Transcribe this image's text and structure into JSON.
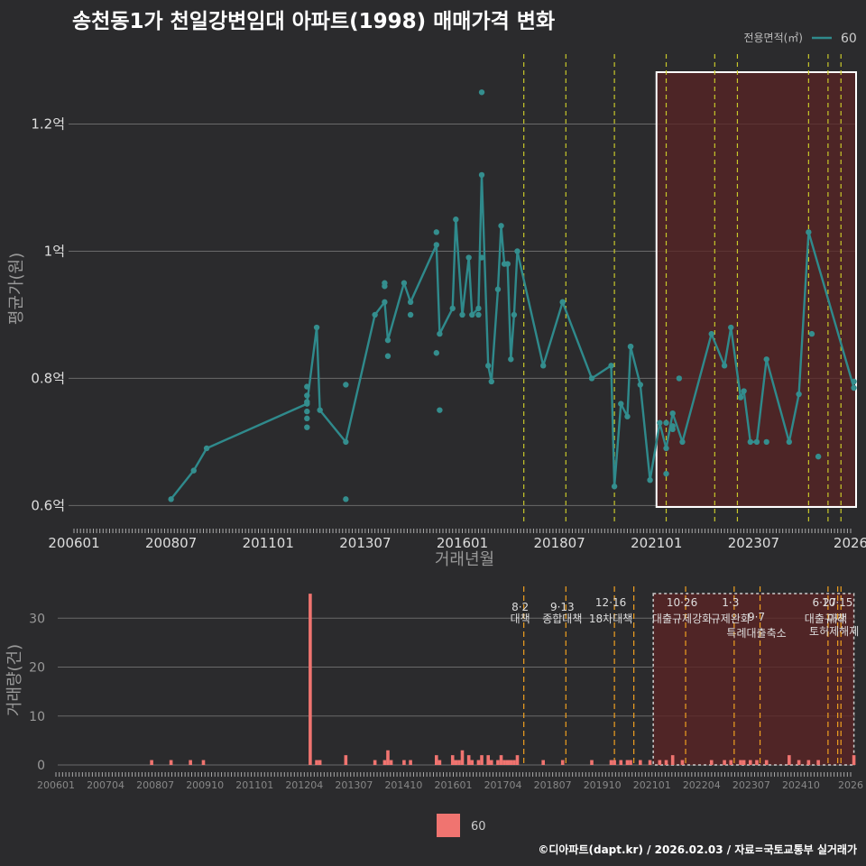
{
  "title": "송천동1가 천일강변임대 아파트(1998) 매매가격 변화",
  "footer": "©디아파트(dapt.kr) / 2026.02.03 / 자료=국토교통부 실거래가",
  "colors": {
    "line": "#2f8a8c",
    "point": "#348e8e",
    "bar": "#f07470",
    "vline_top": "#c8c82a",
    "vline_bottom": "#f0a020",
    "highlight": "#5a2424"
  },
  "chart_data": [
    {
      "type": "line",
      "title": "송천동1가 천일강변임대 아파트(1998) 매매가격 변화",
      "xlabel": "거래년월",
      "ylabel": "평균가(원)",
      "ylim": [
        0.575,
        1.31
      ],
      "y_ticks": [
        {
          "v": 0.6,
          "label": "0.6억"
        },
        {
          "v": 0.8,
          "label": "0.8억"
        },
        {
          "v": 1.0,
          "label": "1억"
        },
        {
          "v": 1.2,
          "label": "1.2억"
        }
      ],
      "x_ticks": [
        "200601",
        "200807",
        "201101",
        "201307",
        "201601",
        "201807",
        "202101",
        "202307",
        "2026"
      ],
      "legend": {
        "title": "전용면적(㎡)",
        "entries": [
          "60"
        ],
        "position": "top-right"
      },
      "highlight_range": [
        "2021-01",
        "2026-01"
      ],
      "event_lines": [
        "2017-08",
        "2018-09",
        "2019-12",
        "2021-04",
        "2022-07",
        "2023-02",
        "2024-12",
        "2025-06",
        "2025-10"
      ],
      "series": [
        {
          "name": "60",
          "x": [
            "2008-07",
            "2009-02",
            "2009-06",
            "2012-01",
            "2012-04",
            "2012-05",
            "2013-01",
            "2013-10",
            "2014-01",
            "2014-02",
            "2014-07",
            "2014-09",
            "2015-05",
            "2015-06",
            "2015-10",
            "2015-11",
            "2016-01",
            "2016-03",
            "2016-04",
            "2016-06",
            "2016-07",
            "2016-09",
            "2016-10",
            "2016-12",
            "2017-01",
            "2017-02",
            "2017-03",
            "2017-04",
            "2017-05",
            "2017-06",
            "2018-02",
            "2018-08",
            "2019-05",
            "2019-11",
            "2019-12",
            "2020-02",
            "2020-04",
            "2020-05",
            "2020-08",
            "2020-11",
            "2021-02",
            "2021-04",
            "2021-06",
            "2021-09",
            "2022-06",
            "2022-10",
            "2022-12",
            "2023-03",
            "2023-04",
            "2023-06",
            "2023-08",
            "2023-11",
            "2024-06",
            "2024-09",
            "2024-12",
            "2026-02"
          ],
          "y": [
            0.61,
            0.655,
            0.69,
            0.76,
            0.88,
            0.75,
            0.7,
            0.9,
            0.92,
            0.86,
            0.95,
            0.92,
            1.01,
            0.87,
            0.91,
            1.05,
            0.9,
            0.99,
            0.9,
            0.91,
            1.12,
            0.82,
            0.795,
            0.94,
            1.04,
            0.98,
            0.98,
            0.83,
            0.9,
            1.0,
            0.82,
            0.92,
            0.8,
            0.82,
            0.63,
            0.76,
            0.74,
            0.85,
            0.79,
            0.64,
            0.73,
            0.69,
            0.745,
            0.7,
            0.87,
            0.82,
            0.88,
            0.77,
            0.78,
            0.7,
            0.7,
            0.83,
            0.7,
            0.775,
            1.03,
            0.785
          ]
        }
      ],
      "points": {
        "x": [
          "2012-01",
          "2012-01",
          "2012-01",
          "2012-01",
          "2012-01",
          "2012-01",
          "2013-01",
          "2013-01",
          "2014-01",
          "2014-01",
          "2014-02",
          "2014-09",
          "2015-05",
          "2015-05",
          "2015-06",
          "2016-06",
          "2016-07",
          "2016-07",
          "2018-08",
          "2020-05",
          "2021-04",
          "2021-04",
          "2021-06",
          "2021-06",
          "2021-08",
          "2023-11",
          "2025-01",
          "2025-03",
          "2026-02"
        ],
        "y": [
          0.787,
          0.773,
          0.763,
          0.748,
          0.737,
          0.723,
          0.79,
          0.61,
          0.95,
          0.945,
          0.835,
          0.9,
          1.03,
          0.84,
          0.75,
          0.9,
          1.25,
          0.99,
          0.92,
          0.85,
          0.73,
          0.65,
          0.725,
          0.72,
          0.8,
          0.7,
          0.87,
          0.677,
          0.795
        ]
      }
    },
    {
      "type": "bar",
      "ylabel": "거래량(건)",
      "ylim": [
        0,
        36.5
      ],
      "y_ticks": [
        0,
        10,
        20,
        30
      ],
      "x_ticks": [
        "200601",
        "200704",
        "200807",
        "200910",
        "201101",
        "201204",
        "201307",
        "201410",
        "201601",
        "201704",
        "201807",
        "201910",
        "202101",
        "202204",
        "202307",
        "202410",
        "2026"
      ],
      "legend": {
        "entries": [
          "60"
        ],
        "position": "bottom"
      },
      "highlight_range": [
        "2020-12",
        "2026-02"
      ],
      "events": [
        {
          "x": "2017-08",
          "date": "8·2",
          "label": "대책"
        },
        {
          "x": "2018-09",
          "date": "9·13",
          "label": "종합대책"
        },
        {
          "x": "2019-12",
          "date": "12·16",
          "label": "18차대책"
        },
        {
          "x": "2020-06",
          "date": "",
          "label": ""
        },
        {
          "x": "2021-10",
          "date": "10·26",
          "label": "대출규제강화"
        },
        {
          "x": "2023-01",
          "date": "1·3",
          "label": "규제완화"
        },
        {
          "x": "2023-09",
          "date": "9·7",
          "label": "특례대출축소"
        },
        {
          "x": "2025-06",
          "date": "6·27",
          "label": "대출규제"
        },
        {
          "x": "2025-09",
          "date": "",
          "label": "토허제해제"
        },
        {
          "x": "2025-10",
          "date": "10·15",
          "label": "대책"
        }
      ],
      "series": [
        {
          "name": "60",
          "x": [
            "2008-01",
            "2008-07",
            "2009-01",
            "2009-05",
            "2012-02",
            "2012-04",
            "2012-05",
            "2013-01",
            "2013-10",
            "2014-01",
            "2014-02",
            "2014-03",
            "2014-07",
            "2014-09",
            "2015-05",
            "2015-06",
            "2015-10",
            "2015-11",
            "2015-12",
            "2016-01",
            "2016-03",
            "2016-04",
            "2016-06",
            "2016-07",
            "2016-09",
            "2016-10",
            "2016-12",
            "2017-01",
            "2017-02",
            "2017-03",
            "2017-04",
            "2017-05",
            "2017-06",
            "2018-02",
            "2018-08",
            "2019-05",
            "2019-11",
            "2019-12",
            "2020-02",
            "2020-04",
            "2020-05",
            "2020-08",
            "2020-11",
            "2021-02",
            "2021-04",
            "2021-06",
            "2021-09",
            "2022-06",
            "2022-10",
            "2022-12",
            "2023-03",
            "2023-04",
            "2023-06",
            "2023-08",
            "2023-11",
            "2024-06",
            "2024-09",
            "2024-12",
            "2025-03",
            "2026-02"
          ],
          "y": [
            1,
            1,
            1,
            1,
            35,
            1,
            1,
            2,
            1,
            1,
            3,
            1,
            1,
            1,
            2,
            1,
            2,
            1,
            1,
            3,
            2,
            1,
            1,
            2,
            2,
            1,
            1,
            2,
            1,
            1,
            1,
            1,
            2,
            1,
            1,
            1,
            1,
            1,
            1,
            1,
            1,
            1,
            1,
            1,
            1,
            2,
            1,
            1,
            1,
            1,
            1,
            1,
            1,
            1,
            1,
            2,
            1,
            1,
            1,
            2
          ]
        }
      ]
    }
  ]
}
